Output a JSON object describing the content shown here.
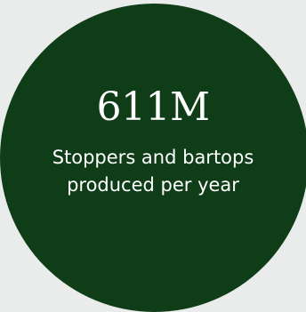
{
  "stat": {
    "value": "611M",
    "label_line1": "Stoppers and bartops",
    "label_line2": "produced per year"
  },
  "colors": {
    "background": "#e9ecea",
    "circle": "#0f3d18",
    "text": "#ffffff"
  }
}
